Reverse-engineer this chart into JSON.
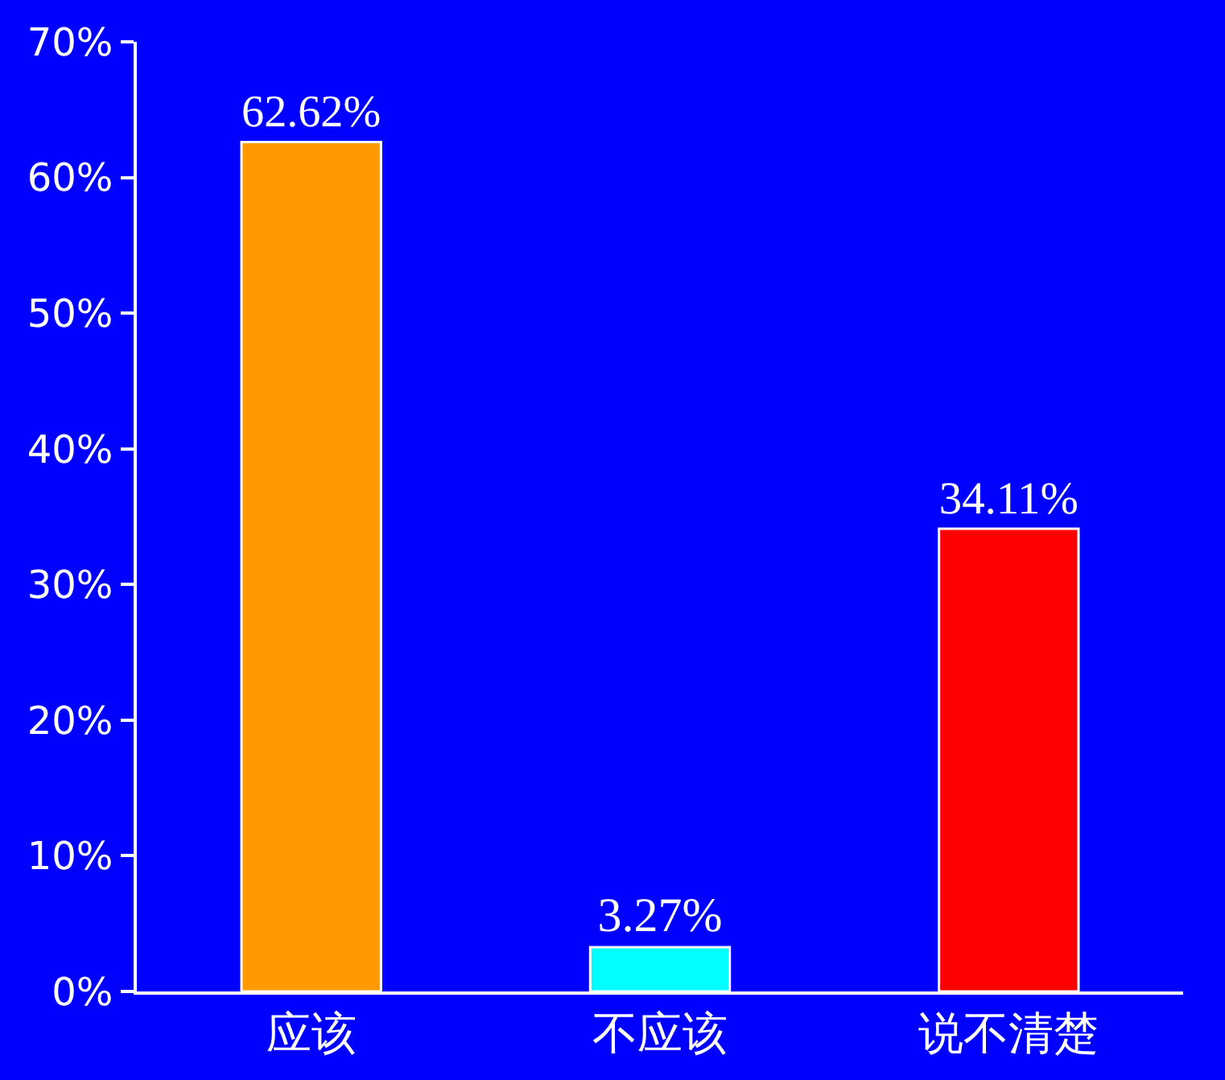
{
  "chart_data": {
    "type": "bar",
    "categories": [
      "应该",
      "不应该",
      "说不清楚"
    ],
    "values": [
      62.62,
      3.27,
      34.11
    ],
    "colors": [
      "#ff9900",
      "#00ffff",
      "#ff0000"
    ],
    "value_labels": [
      "62.62%",
      "3.27%",
      "34.11%"
    ],
    "ylim": [
      0,
      70
    ],
    "yticks": [
      {
        "value": 0,
        "label": "0%"
      },
      {
        "value": 10,
        "label": "10%"
      },
      {
        "value": 20,
        "label": "20%"
      },
      {
        "value": 30,
        "label": "30%"
      },
      {
        "value": 40,
        "label": "40%"
      },
      {
        "value": 50,
        "label": "50%"
      },
      {
        "value": 60,
        "label": "60%"
      },
      {
        "value": 70,
        "label": "70%"
      }
    ],
    "grid": false,
    "legend": false
  }
}
